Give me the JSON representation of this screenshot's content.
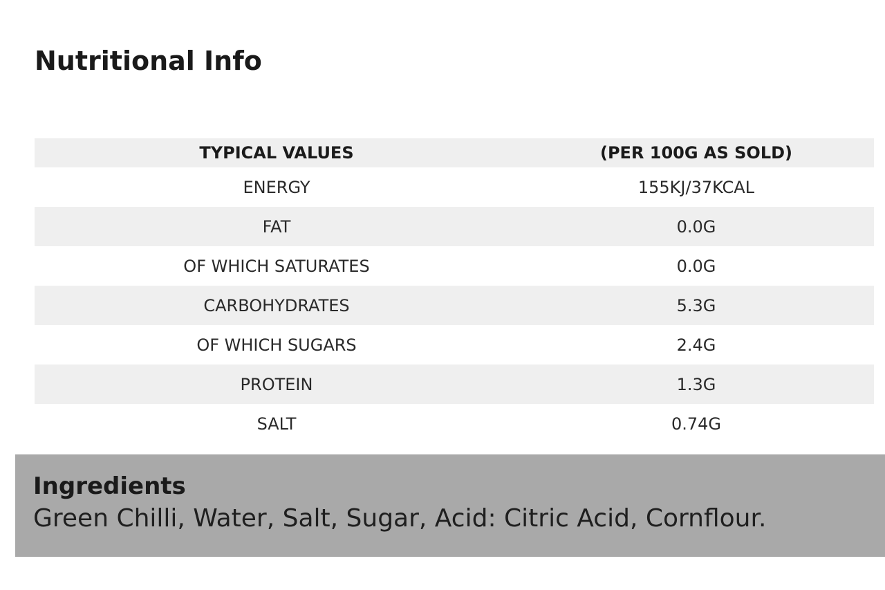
{
  "page_title": "Nutritional Info",
  "nutrition_table": {
    "header": {
      "label": "TYPICAL VALUES",
      "value": "(PER 100G AS SOLD)"
    },
    "rows": [
      {
        "label": "ENERGY",
        "value": "155KJ/37KCAL"
      },
      {
        "label": "FAT",
        "value": "0.0G"
      },
      {
        "label": "OF WHICH SATURATES",
        "value": "0.0G"
      },
      {
        "label": "CARBOHYDRATES",
        "value": "5.3G"
      },
      {
        "label": "OF WHICH SUGARS",
        "value": "2.4G"
      },
      {
        "label": "PROTEIN",
        "value": "1.3G"
      },
      {
        "label": "SALT",
        "value": "0.74G"
      }
    ]
  },
  "ingredients": {
    "heading": "Ingredients",
    "text": "Green Chilli, Water, Salt, Sugar, Acid: Citric Acid, Cornflour."
  },
  "colors": {
    "shaded_row": "#efefef",
    "ingredients_background": "#a9a9a9"
  }
}
